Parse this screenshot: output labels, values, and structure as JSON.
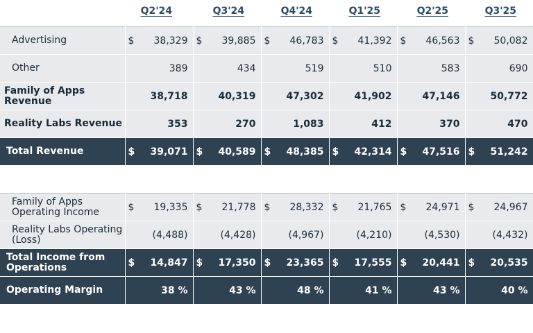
{
  "headers": [
    "Q2'24",
    "Q3'24",
    "Q4'24",
    "Q1'25",
    "Q2'25",
    "Q3'25"
  ],
  "currency": "$",
  "revenue_table": {
    "rows": [
      {
        "label": "Advertising",
        "values": [
          "38,329",
          "39,885",
          "46,783",
          "41,392",
          "46,563",
          "50,082"
        ],
        "dollar": true,
        "style": "light",
        "bold_label": false
      },
      {
        "label": "Other",
        "values": [
          "389",
          "434",
          "519",
          "510",
          "583",
          "690"
        ],
        "dollar": false,
        "style": "light",
        "bold_label": false
      },
      {
        "label": "Family of Apps Revenue",
        "values": [
          "38,718",
          "40,319",
          "47,302",
          "41,902",
          "47,146",
          "50,772"
        ],
        "dollar": false,
        "style": "light",
        "bold_label": true
      },
      {
        "label": "Reality Labs Revenue",
        "values": [
          "353",
          "270",
          "1,083",
          "412",
          "370",
          "470"
        ],
        "dollar": false,
        "style": "light",
        "bold_label": true
      },
      {
        "label": "Total Revenue",
        "values": [
          "39,071",
          "40,589",
          "48,385",
          "42,314",
          "47,516",
          "51,242"
        ],
        "dollar": true,
        "style": "dark",
        "bold_label": true
      }
    ]
  },
  "income_table": {
    "rows": [
      {
        "label": "Family of Apps Operating Income",
        "values": [
          "19,335",
          "21,778",
          "28,332",
          "21,765",
          "24,971",
          "24,967"
        ],
        "dollar": true,
        "style": "light",
        "bold_label": false
      },
      {
        "label": "Reality Labs Operating (Loss)",
        "values": [
          "(4,488)",
          "(4,428)",
          "(4,967)",
          "(4,210)",
          "(4,530)",
          "(4,432)"
        ],
        "dollar": false,
        "style": "light",
        "bold_label": false
      },
      {
        "label": "Total Income from Operations",
        "values": [
          "14,847",
          "17,350",
          "23,365",
          "17,555",
          "20,441",
          "20,535"
        ],
        "dollar": true,
        "style": "dark",
        "bold_label": true
      },
      {
        "label": "Operating Margin",
        "values": [
          "38 %",
          "43 %",
          "48 %",
          "41 %",
          "43 %",
          "40 %"
        ],
        "dollar": false,
        "style": "dark",
        "bold_label": true
      }
    ]
  },
  "colors": {
    "dark_row": "#2e4252",
    "light_row": "#e8eaed",
    "header_text": "#2a4a63"
  }
}
